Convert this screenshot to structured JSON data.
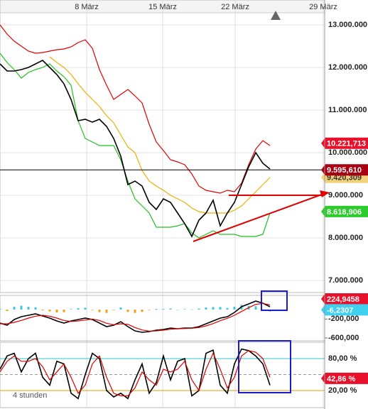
{
  "chart_data": [
    {
      "type": "line",
      "x": [
        0,
        1,
        2,
        3,
        4,
        5,
        6,
        7,
        8,
        9,
        10,
        11,
        12,
        13,
        14,
        15,
        16,
        17,
        18,
        19,
        20,
        21,
        22,
        23,
        24,
        25,
        26,
        27,
        28,
        29,
        30,
        31,
        32,
        33,
        34,
        35,
        36,
        37,
        38
      ],
      "xlim": [
        0,
        45.7
      ],
      "xticks": [
        {
          "value": 12.2,
          "label": "8 März"
        },
        {
          "value": 22.9,
          "label": "15 März"
        },
        {
          "value": 33.1,
          "label": "22 März"
        },
        {
          "value": 45.5,
          "label": "29 März"
        }
      ],
      "ylim": [
        6717,
        13583
      ],
      "yticks": [
        {
          "value": 13000,
          "label": "13.000.000"
        },
        {
          "value": 12000,
          "label": "12.000.000"
        },
        {
          "value": 11000,
          "label": "11.000.000"
        },
        {
          "value": 10000,
          "label": "10.000.000"
        },
        {
          "value": 9000,
          "label": "9.000.000"
        },
        {
          "value": 8000,
          "label": "8.000.000"
        },
        {
          "value": 7000,
          "label": "7.000.000"
        }
      ],
      "grid": true,
      "series": [
        {
          "color": "#e8b000",
          "values": [
            null,
            null,
            null,
            null,
            null,
            null,
            null,
            12250,
            12117,
            12000,
            11833,
            11617,
            11417,
            11250,
            11083,
            10867,
            10700,
            10417,
            10133,
            10000,
            9583,
            9333,
            9217,
            9117,
            9000,
            8917,
            8833,
            8700,
            8617,
            8583,
            8583,
            8583,
            8583,
            8650,
            8750,
            8917,
            9083,
            9250,
            9417
          ]
        },
        {
          "color": "#e00000",
          "values": [
            13000,
            12783,
            12617,
            12500,
            12383,
            12333,
            12350,
            12383,
            12417,
            12433,
            12483,
            12583,
            12650,
            12450,
            11950,
            11583,
            11250,
            11367,
            11483,
            11333,
            11167,
            10667,
            10250,
            10050,
            9833,
            9783,
            9717,
            9500,
            9217,
            9117,
            9083,
            9050,
            9117,
            9083,
            9283,
            9717,
            10083,
            10283,
            10167
          ]
        },
        {
          "color": "#22c022",
          "values": [
            12333,
            12117,
            11950,
            11750,
            11883,
            11950,
            12000,
            12083,
            11917,
            11783,
            11583,
            10750,
            10333,
            10250,
            10167,
            10167,
            10167,
            9833,
            9333,
            8917,
            8750,
            8583,
            8250,
            8250,
            8250,
            8283,
            8333,
            8117,
            8000,
            8083,
            8167,
            8083,
            8083,
            8083,
            8033,
            8033,
            8033,
            8083,
            8583
          ]
        },
        {
          "color": "#000000",
          "values": [
            12083,
            11917,
            11917,
            11950,
            12000,
            12083,
            12167,
            12000,
            11833,
            11617,
            11250,
            10750,
            10783,
            10717,
            10783,
            10617,
            10333,
            9917,
            9250,
            9333,
            9217,
            8833,
            8667,
            8917,
            8833,
            8583,
            8333,
            8033,
            8417,
            8583,
            8883,
            8283,
            8583,
            8833,
            9250,
            9667,
            10000,
            9750,
            9617
          ]
        }
      ],
      "markers": [
        {
          "value": 9420.309,
          "label": "9.420,309",
          "color": "#f2d27a",
          "text_color": "#333333"
        },
        {
          "value": 10221.713,
          "label": "10.221,713",
          "color": "#e8102a",
          "text_color": "#ffffff"
        },
        {
          "value": 8618.906,
          "label": "8.618,906",
          "color": "#2ccc2c",
          "text_color": "#ffffff"
        },
        {
          "value": 9595.61,
          "label": "9.595,610",
          "color": "#a80010",
          "text_color": "#ffffff",
          "line": true
        }
      ]
    },
    {
      "type": "combo",
      "x": [
        0,
        1,
        2,
        3,
        4,
        5,
        6,
        7,
        8,
        9,
        10,
        11,
        12,
        13,
        14,
        15,
        16,
        17,
        18,
        19,
        20,
        21,
        22,
        23,
        24,
        25,
        26,
        27,
        28,
        29,
        30,
        31,
        32,
        33,
        34,
        35,
        36,
        37,
        38
      ],
      "xlim": [
        0,
        45.7
      ],
      "ylim": [
        -660,
        300
      ],
      "yticks": [
        {
          "value": -200,
          "label": "-200,000"
        },
        {
          "value": -600,
          "label": "-600,000"
        }
      ],
      "series": [
        {
          "kind": "bar",
          "color": "#40c8e0",
          "negative_color": "#f0a020",
          "values": [
            15,
            -30,
            60,
            80,
            60,
            50,
            -15,
            -40,
            -60,
            -55,
            10,
            30,
            40,
            -10,
            -55,
            -70,
            -10,
            45,
            -50,
            -70,
            -50,
            -10,
            15,
            15,
            25,
            0,
            10,
            5,
            20,
            45,
            55,
            55,
            35,
            60,
            100,
            80,
            70,
            5,
            -40
          ]
        },
        {
          "color": "#000000",
          "values": [
            -285,
            -330,
            -210,
            -150,
            -120,
            -90,
            -135,
            -180,
            -240,
            -285,
            -240,
            -210,
            -180,
            -210,
            -285,
            -360,
            -330,
            -255,
            -360,
            -450,
            -480,
            -465,
            -435,
            -420,
            -390,
            -405,
            -390,
            -390,
            -360,
            -300,
            -240,
            -180,
            -150,
            -60,
            60,
            120,
            180,
            135,
            60
          ]
        },
        {
          "color": "#e00000",
          "values": [
            -300,
            -300,
            -270,
            -230,
            -180,
            -140,
            -120,
            -140,
            -180,
            -230,
            -250,
            -240,
            -220,
            -200,
            -230,
            -290,
            -320,
            -300,
            -310,
            -380,
            -430,
            -455,
            -450,
            -435,
            -415,
            -405,
            -400,
            -395,
            -380,
            -345,
            -295,
            -235,
            -185,
            -120,
            -40,
            40,
            110,
            130,
            100
          ]
        }
      ],
      "markers": [
        {
          "value": 224.9458,
          "label": "224,9458",
          "color": "#e8102a",
          "text_color": "#ffffff"
        },
        {
          "value": -6.2307,
          "label": "-6,2307",
          "color": "#40d0f0",
          "text_color": "#ffffff"
        }
      ]
    },
    {
      "type": "line",
      "x": [
        0,
        1,
        2,
        3,
        4,
        5,
        6,
        7,
        8,
        9,
        10,
        11,
        12,
        13,
        14,
        15,
        16,
        17,
        18,
        19,
        20,
        21,
        22,
        23,
        24,
        25,
        26,
        27,
        28,
        29,
        30,
        31,
        32,
        33,
        34,
        35,
        36,
        37,
        38
      ],
      "xlim": [
        0,
        45.7
      ],
      "ylim": [
        -12,
        110.7
      ],
      "yticks": [
        {
          "value": 80,
          "label": "80,00 %"
        },
        {
          "value": 20,
          "label": "20,00 %"
        }
      ],
      "tick_colors": [
        "#30c8c8",
        "#e0a000"
      ],
      "midline": 50,
      "annotation": "4 stunden",
      "series": [
        {
          "color": "#000000",
          "values": [
            60,
            85,
            90,
            55,
            80,
            90,
            45,
            30,
            75,
            70,
            15,
            5,
            50,
            90,
            80,
            20,
            8,
            15,
            5,
            40,
            70,
            15,
            35,
            85,
            40,
            75,
            80,
            10,
            20,
            90,
            96,
            30,
            15,
            70,
            98,
            95,
            85,
            70,
            30
          ]
        },
        {
          "color": "#e00000",
          "values": [
            55,
            75,
            85,
            75,
            75,
            80,
            65,
            40,
            55,
            70,
            45,
            15,
            30,
            70,
            85,
            45,
            15,
            10,
            10,
            25,
            55,
            40,
            30,
            60,
            55,
            60,
            75,
            40,
            20,
            60,
            90,
            60,
            25,
            45,
            85,
            95,
            92,
            80,
            45
          ]
        }
      ],
      "markers": [
        {
          "value": 42.86,
          "label": "42,86 %",
          "color": "#e8102a",
          "text_color": "#ffffff"
        }
      ]
    }
  ]
}
